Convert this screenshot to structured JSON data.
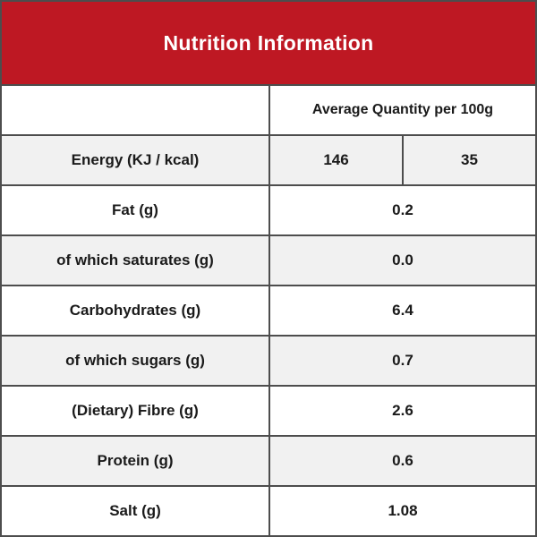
{
  "header": {
    "title": "Nutrition Information"
  },
  "table": {
    "column_header": "Average Quantity per 100g",
    "rows": [
      {
        "label": "Energy (KJ / kcal)",
        "values": [
          "146",
          "35"
        ]
      },
      {
        "label": "Fat (g)",
        "values": [
          "0.2"
        ]
      },
      {
        "label": "of which saturates (g)",
        "values": [
          "0.0"
        ]
      },
      {
        "label": "Carbohydrates (g)",
        "values": [
          "6.4"
        ]
      },
      {
        "label": "of which sugars (g)",
        "values": [
          "0.7"
        ]
      },
      {
        "label": "(Dietary) Fibre (g)",
        "values": [
          "2.6"
        ]
      },
      {
        "label": "Protein (g)",
        "values": [
          "0.6"
        ]
      },
      {
        "label": "Salt (g)",
        "values": [
          "1.08"
        ]
      }
    ]
  },
  "colors": {
    "header_bg": "#BE1823",
    "row_alt_bg": "#F1F1F1",
    "border": "#4D4D4D",
    "text": "#1A1A1A"
  }
}
